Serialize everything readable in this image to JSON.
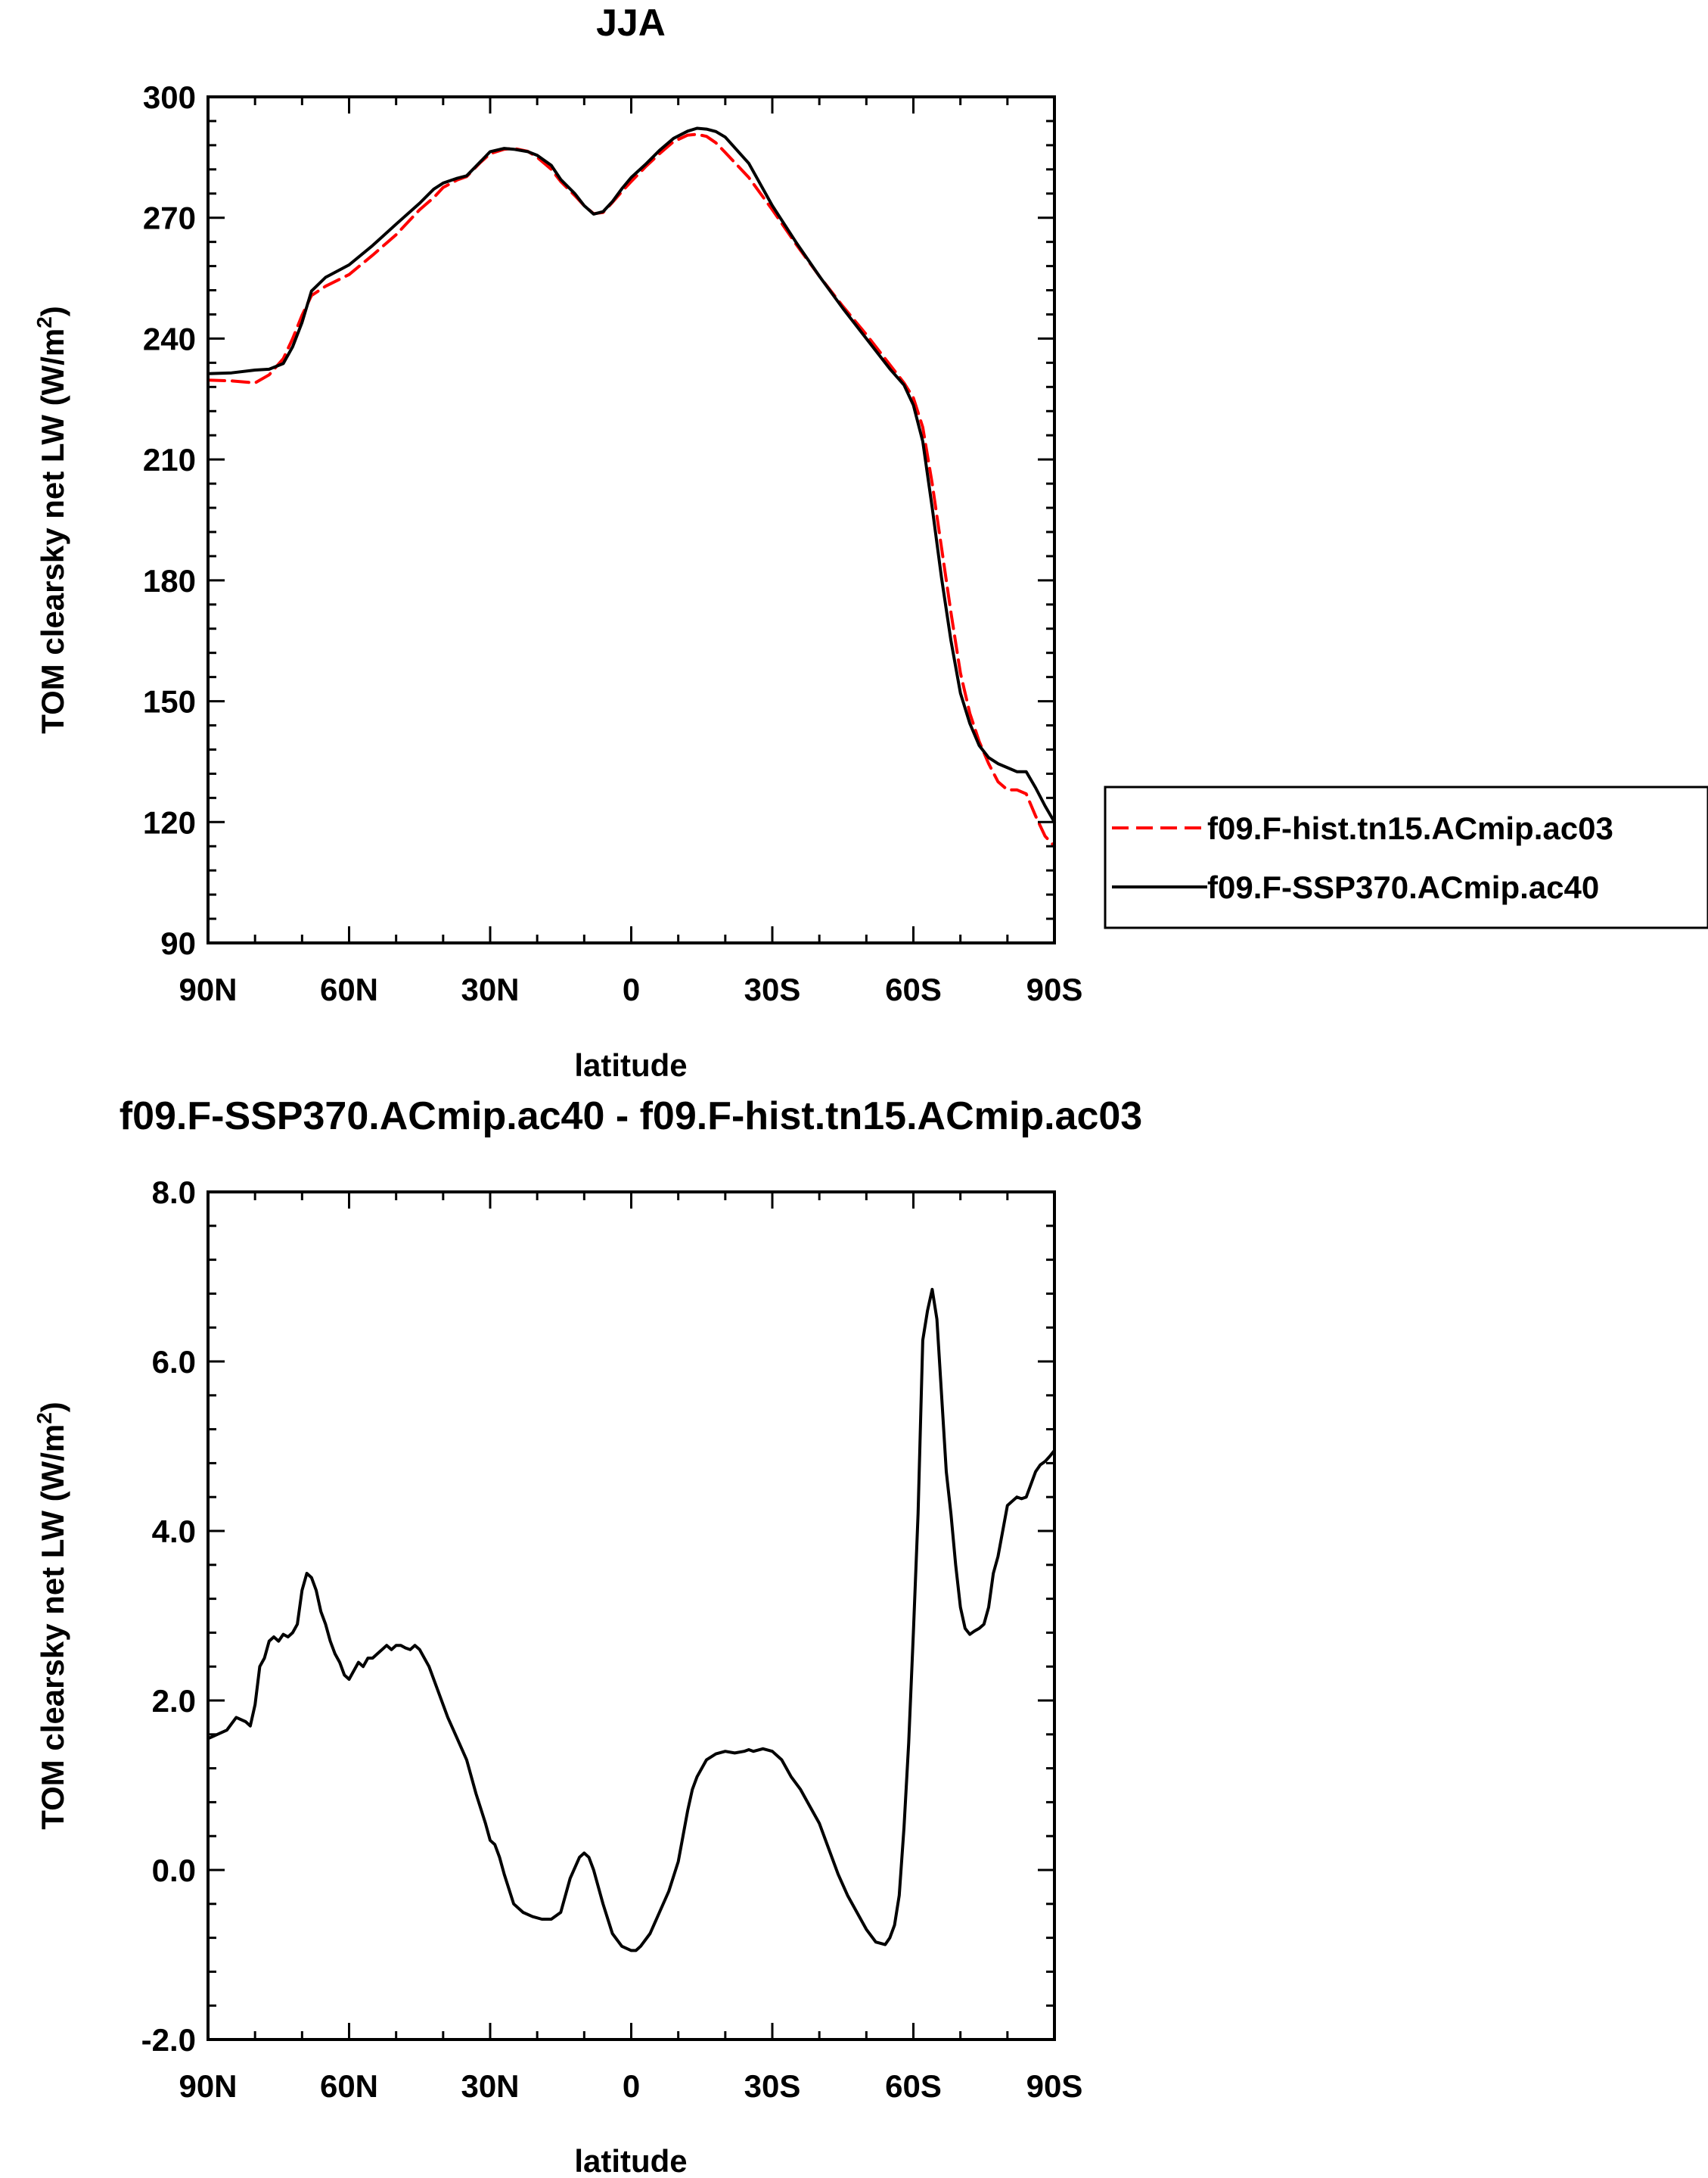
{
  "chart_data": [
    {
      "type": "line",
      "title": "JJA",
      "xlabel": "latitude",
      "ylabel": "TOM clearsky net LW (W/m²)",
      "ylabel_main": "TOM clearsky net LW (W/m",
      "ylabel_sup": "2",
      "ylabel_close": ")",
      "xlim": [
        90,
        -90
      ],
      "ylim": [
        90,
        300
      ],
      "xticks": [
        90,
        60,
        30,
        0,
        -30,
        -60,
        -90
      ],
      "xticklabels": [
        "90N",
        "60N",
        "30N",
        "0",
        "30S",
        "60S",
        "90S"
      ],
      "yticks": [
        90,
        120,
        150,
        180,
        210,
        240,
        270,
        300
      ],
      "yticklabels": [
        "90",
        "120",
        "150",
        "180",
        "210",
        "240",
        "270",
        "300"
      ],
      "legend_position": "right-outside",
      "x": [
        90,
        85,
        80,
        77,
        74,
        72,
        70,
        68,
        65,
        60,
        55,
        50,
        45,
        42,
        40,
        37,
        35,
        32,
        30,
        27,
        25,
        22,
        20,
        17,
        15,
        12,
        10,
        8,
        6,
        4,
        2,
        0,
        -3,
        -6,
        -9,
        -12,
        -14,
        -16,
        -18,
        -20,
        -25,
        -30,
        -35,
        -40,
        -45,
        -50,
        -55,
        -58,
        -60,
        -62,
        -64,
        -66,
        -68,
        -70,
        -72,
        -74,
        -76,
        -78,
        -80,
        -82,
        -84,
        -86,
        -88,
        -90
      ],
      "series": [
        {
          "name": "f09.F-hist.tn15.ACmip.ac03",
          "color": "#ff0000",
          "dash": "dashed",
          "values": [
            229.7,
            229.5,
            229.0,
            231.0,
            235.0,
            240.0,
            245.8,
            250.7,
            253.0,
            255.9,
            260.7,
            265.8,
            272.0,
            275.0,
            277.5,
            279.4,
            280.2,
            283.8,
            285.9,
            287.0,
            287.2,
            286.5,
            285.0,
            282.0,
            279.0,
            275.5,
            273.0,
            271.0,
            271.3,
            273.8,
            276.5,
            279.0,
            282.6,
            285.9,
            288.9,
            290.5,
            290.7,
            290.2,
            288.6,
            286.2,
            280.0,
            272.0,
            263.5,
            255.5,
            248.0,
            241.0,
            233.5,
            229.0,
            225.3,
            218.0,
            204.0,
            188.0,
            172.0,
            157.0,
            147.0,
            140.0,
            134.5,
            130.0,
            128.0,
            128.0,
            127.0,
            121.5,
            116.5,
            114.0
          ]
        },
        {
          "name": "f09.F-SSP370.ACmip.ac40",
          "color": "#000000",
          "dash": "solid",
          "values": [
            231.3,
            231.5,
            232.2,
            232.4,
            233.8,
            238.0,
            244.0,
            251.8,
            255.2,
            258.3,
            263.1,
            268.4,
            273.6,
            277.1,
            278.6,
            279.8,
            280.4,
            284.0,
            286.4,
            287.2,
            287.0,
            286.4,
            285.5,
            283.0,
            279.5,
            276.0,
            273.0,
            270.9,
            271.5,
            274.0,
            277.2,
            280.0,
            283.2,
            286.7,
            289.7,
            291.5,
            292.2,
            292.0,
            291.4,
            290.0,
            283.5,
            273.0,
            264.0,
            255.5,
            247.5,
            240.0,
            232.5,
            228.5,
            223.5,
            214.5,
            198.0,
            180.5,
            165.0,
            152.0,
            144.5,
            139.0,
            136.0,
            134.5,
            133.5,
            132.5,
            132.5,
            128.5,
            124.0,
            120.0
          ]
        }
      ]
    },
    {
      "type": "line",
      "title": "f09.F-SSP370.ACmip.ac40 - f09.F-hist.tn15.ACmip.ac03",
      "xlabel": "latitude",
      "ylabel": "TOM clearsky net LW (W/m²)",
      "ylabel_main": "TOM clearsky net LW (W/m",
      "ylabel_sup": "2",
      "ylabel_close": ")",
      "xlim": [
        90,
        -90
      ],
      "ylim": [
        -2.0,
        8.0
      ],
      "xticks": [
        90,
        60,
        30,
        0,
        -30,
        -60,
        -90
      ],
      "xticklabels": [
        "90N",
        "60N",
        "30N",
        "0",
        "30S",
        "60S",
        "90S"
      ],
      "yticks": [
        -2,
        0,
        2,
        4,
        6,
        8
      ],
      "yticklabels": [
        "-2.0",
        "0.0",
        "2.0",
        "4.0",
        "6.0",
        "8.0"
      ],
      "x": [
        90,
        88,
        86,
        84,
        82,
        81,
        80,
        79,
        78,
        77,
        76,
        75,
        74,
        73,
        72,
        71,
        70,
        69,
        68,
        67,
        66,
        65,
        64,
        63,
        62,
        61,
        60,
        59,
        58,
        57,
        56,
        55,
        54,
        53,
        52,
        51,
        50,
        49,
        48,
        47,
        46,
        45,
        43,
        41,
        39,
        37,
        35,
        33,
        31,
        30,
        29,
        28,
        27,
        25,
        23,
        21,
        19,
        17,
        15,
        13,
        11,
        10,
        9,
        8,
        6,
        4,
        2,
        0,
        -1,
        -2,
        -4,
        -6,
        -8,
        -10,
        -11,
        -12,
        -13,
        -14,
        -16,
        -18,
        -20,
        -22,
        -24,
        -25,
        -26,
        -28,
        -30,
        -32,
        -34,
        -36,
        -38,
        -40,
        -42,
        -44,
        -46,
        -48,
        -50,
        -52,
        -54,
        -55,
        -56,
        -57,
        -58,
        -59,
        -60,
        -61,
        -62,
        -63,
        -64,
        -65,
        -66,
        -67,
        -68,
        -69,
        -70,
        -71,
        -72,
        -73,
        -74,
        -75,
        -76,
        -77,
        -78,
        -79,
        -80,
        -81,
        -82,
        -83,
        -84,
        -85,
        -86,
        -87,
        -88,
        -89,
        -90
      ],
      "series": [
        {
          "name": "f09.F-SSP370.ACmip.ac40 - f09.F-hist.tn15.ACmip.ac03",
          "color": "#000000",
          "dash": "solid",
          "values": [
            1.55,
            1.6,
            1.65,
            1.8,
            1.75,
            1.7,
            1.95,
            2.4,
            2.5,
            2.7,
            2.75,
            2.7,
            2.78,
            2.75,
            2.8,
            2.9,
            3.3,
            3.5,
            3.45,
            3.3,
            3.05,
            2.9,
            2.7,
            2.55,
            2.45,
            2.3,
            2.25,
            2.35,
            2.45,
            2.4,
            2.5,
            2.5,
            2.55,
            2.6,
            2.65,
            2.6,
            2.65,
            2.65,
            2.62,
            2.6,
            2.65,
            2.6,
            2.4,
            2.1,
            1.8,
            1.55,
            1.3,
            0.9,
            0.55,
            0.35,
            0.3,
            0.15,
            -0.05,
            -0.4,
            -0.5,
            -0.55,
            -0.58,
            -0.58,
            -0.5,
            -0.1,
            0.15,
            0.2,
            0.15,
            0.0,
            -0.4,
            -0.75,
            -0.9,
            -0.95,
            -0.95,
            -0.9,
            -0.75,
            -0.5,
            -0.25,
            0.1,
            0.4,
            0.7,
            0.95,
            1.1,
            1.3,
            1.37,
            1.4,
            1.38,
            1.4,
            1.42,
            1.4,
            1.43,
            1.4,
            1.3,
            1.1,
            0.95,
            0.75,
            0.55,
            0.25,
            -0.05,
            -0.3,
            -0.5,
            -0.7,
            -0.85,
            -0.88,
            -0.8,
            -0.65,
            -0.3,
            0.5,
            1.5,
            2.8,
            4.2,
            6.25,
            6.6,
            6.85,
            6.5,
            5.6,
            4.7,
            4.2,
            3.6,
            3.1,
            2.85,
            2.78,
            2.82,
            2.85,
            2.9,
            3.1,
            3.5,
            3.7,
            4.0,
            4.3,
            4.35,
            4.4,
            4.38,
            4.4,
            4.55,
            4.7,
            4.78,
            4.82,
            4.88,
            4.95
          ]
        }
      ]
    }
  ]
}
